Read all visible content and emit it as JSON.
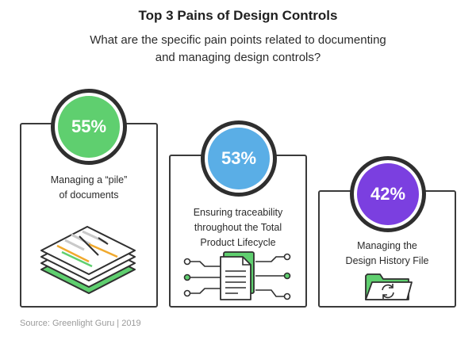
{
  "title": "Top 3 Pains of Design Controls",
  "subtitle_lines": [
    "What are the specific pain points related to documenting",
    "and managing design controls?"
  ],
  "pains": [
    {
      "percent": "55%",
      "value": 55,
      "color": "#5fcf6f",
      "label_lines": [
        "Managing a “pile”",
        "of documents"
      ],
      "icon": "document-stack-icon"
    },
    {
      "percent": "53%",
      "value": 53,
      "color": "#5aaee6",
      "label_lines": [
        "Ensuring traceability",
        "throughout the Total",
        "Product Lifecycle"
      ],
      "icon": "document-network-icon"
    },
    {
      "percent": "42%",
      "value": 42,
      "color": "#7b3fe0",
      "label_lines": [
        "Managing the",
        "Design History File"
      ],
      "icon": "folder-sync-icon"
    }
  ],
  "accent_colors": {
    "green": "#5fcf6f",
    "orange": "#f0a92e",
    "gray": "#c9c9c9",
    "dark": "#2f2f2f"
  },
  "source": "Source: Greenlight Guru | 2019"
}
